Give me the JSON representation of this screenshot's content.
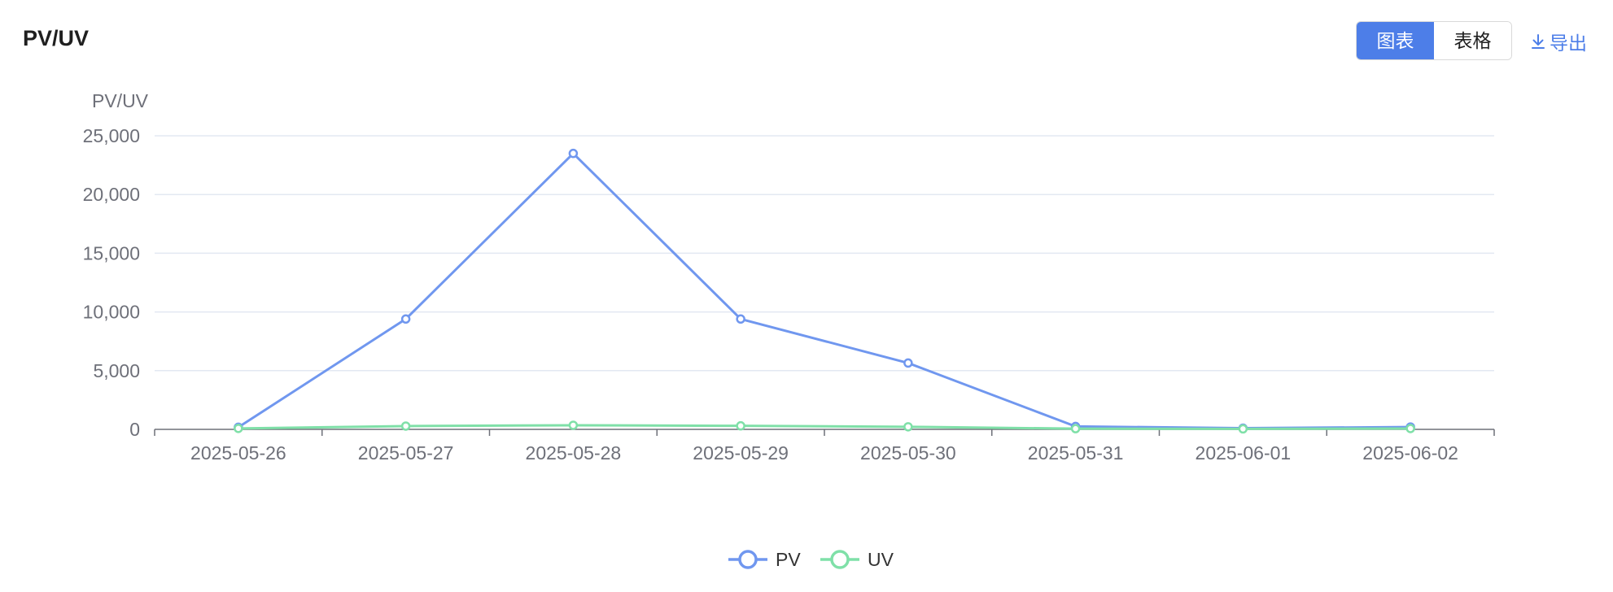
{
  "header": {
    "title": "PV/UV",
    "view_tabs": [
      {
        "label": "图表",
        "active": true
      },
      {
        "label": "表格",
        "active": false
      }
    ],
    "export_label": "导出",
    "export_icon": "download-icon"
  },
  "colors": {
    "accent": "#4d7ee8",
    "pv": "#7097ef",
    "uv": "#7fe0a8",
    "grid": "#e3e8f2",
    "axis": "#6e7079",
    "label": "#6e7079"
  },
  "chart_data": {
    "type": "line",
    "title": "",
    "xlabel": "",
    "ylabel": "PV/UV",
    "categories": [
      "2025-05-26",
      "2025-05-27",
      "2025-05-28",
      "2025-05-29",
      "2025-05-30",
      "2025-05-31",
      "2025-06-01",
      "2025-06-02"
    ],
    "series": [
      {
        "name": "PV",
        "values": [
          180,
          9400,
          23500,
          9400,
          5650,
          250,
          100,
          200
        ]
      },
      {
        "name": "UV",
        "values": [
          80,
          280,
          350,
          300,
          220,
          60,
          40,
          70
        ]
      }
    ],
    "ylim": [
      0,
      25000
    ],
    "yticks": [
      0,
      5000,
      10000,
      15000,
      20000,
      25000
    ],
    "ytick_labels": [
      "0",
      "5,000",
      "10,000",
      "15,000",
      "20,000",
      "25,000"
    ],
    "grid": true,
    "legend_position": "bottom-center",
    "markers": "hollow-circle"
  }
}
